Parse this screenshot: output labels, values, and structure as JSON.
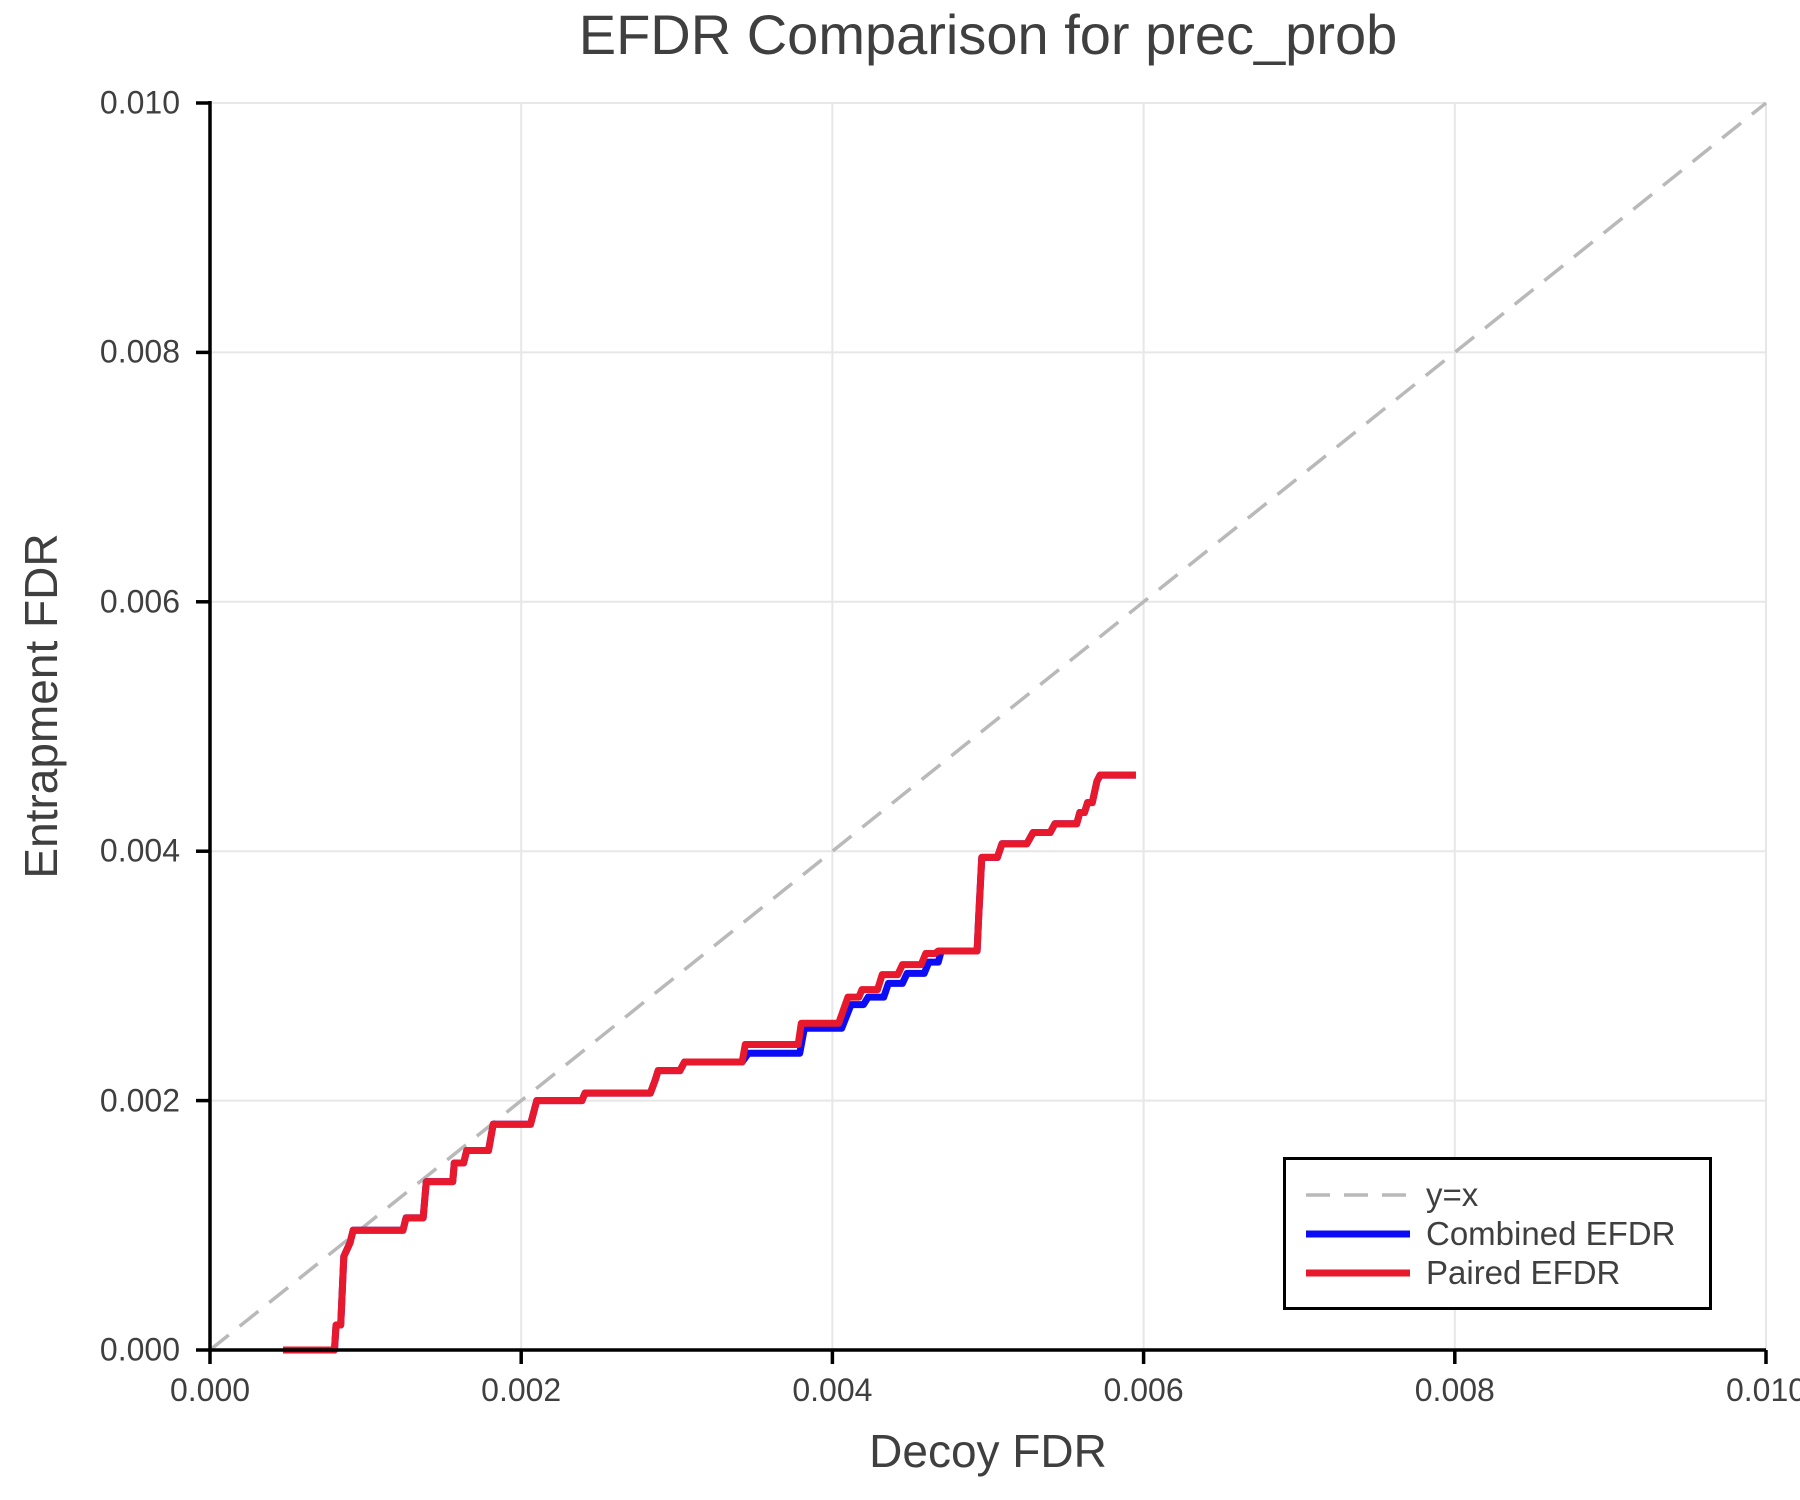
{
  "title": "EFDR Comparison for prec_prob",
  "axes": {
    "xlabel": "Decoy FDR",
    "ylabel": "Entrapment FDR",
    "x_tick_labels": [
      "0.000",
      "0.002",
      "0.004",
      "0.006",
      "0.008",
      "0.010"
    ],
    "y_tick_labels": [
      "0.000",
      "0.002",
      "0.004",
      "0.006",
      "0.008",
      "0.010"
    ]
  },
  "colors": {
    "identity_line": "#b9b9b9",
    "combined": "#0d0df5",
    "paired": "#e8192c",
    "grid": "#e7e7e7",
    "spine": "#000000",
    "text": "#3f3f3f"
  },
  "legend": {
    "items": [
      {
        "label": "y=x",
        "color": "#b9b9b9",
        "dashed": true
      },
      {
        "label": "Combined EFDR",
        "color": "#0d0df5",
        "dashed": false
      },
      {
        "label": "Paired EFDR",
        "color": "#e8192c",
        "dashed": false
      }
    ]
  },
  "chart_data": {
    "type": "line",
    "title": "EFDR Comparison for prec_prob",
    "xlabel": "Decoy FDR",
    "ylabel": "Entrapment FDR",
    "xlim": [
      0.0,
      0.01
    ],
    "ylim": [
      0.0,
      0.01
    ],
    "x_ticks": [
      0.0,
      0.002,
      0.004,
      0.006,
      0.008,
      0.01
    ],
    "y_ticks": [
      0.0,
      0.002,
      0.004,
      0.006,
      0.008,
      0.01
    ],
    "grid": true,
    "legend_position": "lower right",
    "series": [
      {
        "name": "y=x",
        "style": "dashed",
        "color": "#b9b9b9",
        "points": [
          [
            0.0,
            0.0
          ],
          [
            0.01,
            0.01
          ]
        ]
      },
      {
        "name": "Combined EFDR",
        "style": "solid",
        "color": "#0d0df5",
        "points": [
          [
            0.00047,
            0
          ],
          [
            0.0008,
            0
          ],
          [
            0.00081,
            0.0002
          ],
          [
            0.00084,
            0.0002
          ],
          [
            0.00086,
            0.00075
          ],
          [
            0.0009,
            0.00086
          ],
          [
            0.00092,
            0.00096
          ],
          [
            0.00124,
            0.00096
          ],
          [
            0.00126,
            0.00106
          ],
          [
            0.00137,
            0.00106
          ],
          [
            0.00139,
            0.00135
          ],
          [
            0.00156,
            0.00135
          ],
          [
            0.00157,
            0.0015
          ],
          [
            0.00163,
            0.0015
          ],
          [
            0.00165,
            0.0016
          ],
          [
            0.00179,
            0.0016
          ],
          [
            0.00182,
            0.00181
          ],
          [
            0.00206,
            0.00181
          ],
          [
            0.0021,
            0.002
          ],
          [
            0.00239,
            0.002
          ],
          [
            0.00241,
            0.00206
          ],
          [
            0.00283,
            0.00206
          ],
          [
            0.00286,
            0.00216
          ],
          [
            0.00288,
            0.00224
          ],
          [
            0.00302,
            0.00224
          ],
          [
            0.00305,
            0.00231
          ],
          [
            0.00342,
            0.00231
          ],
          [
            0.00346,
            0.00238
          ],
          [
            0.00379,
            0.00238
          ],
          [
            0.00382,
            0.00258
          ],
          [
            0.00406,
            0.00258
          ],
          [
            0.00412,
            0.00277
          ],
          [
            0.0042,
            0.00277
          ],
          [
            0.00423,
            0.00283
          ],
          [
            0.00433,
            0.00283
          ],
          [
            0.00436,
            0.00294
          ],
          [
            0.00445,
            0.00294
          ],
          [
            0.00448,
            0.00302
          ],
          [
            0.00459,
            0.00302
          ],
          [
            0.00462,
            0.00311
          ],
          [
            0.00468,
            0.00311
          ],
          [
            0.0047,
            0.0032
          ],
          [
            0.00493,
            0.0032
          ],
          [
            0.00494,
            0.00347
          ],
          [
            0.00496,
            0.00395
          ],
          [
            0.00506,
            0.00395
          ],
          [
            0.00509,
            0.00406
          ],
          [
            0.00525,
            0.00406
          ],
          [
            0.00529,
            0.00415
          ],
          [
            0.0054,
            0.00415
          ],
          [
            0.00543,
            0.00422
          ],
          [
            0.00557,
            0.00422
          ],
          [
            0.00559,
            0.00431
          ],
          [
            0.00562,
            0.00431
          ],
          [
            0.00564,
            0.00439
          ],
          [
            0.00567,
            0.00439
          ],
          [
            0.0057,
            0.00456
          ],
          [
            0.00572,
            0.00461
          ],
          [
            0.00595,
            0.00461
          ]
        ]
      },
      {
        "name": "Paired EFDR",
        "style": "solid",
        "color": "#e8192c",
        "points": [
          [
            0.00047,
            0
          ],
          [
            0.0008,
            0
          ],
          [
            0.00081,
            0.0002
          ],
          [
            0.00084,
            0.0002
          ],
          [
            0.00086,
            0.00075
          ],
          [
            0.0009,
            0.00086
          ],
          [
            0.00092,
            0.00096
          ],
          [
            0.00124,
            0.00096
          ],
          [
            0.00126,
            0.00106
          ],
          [
            0.00137,
            0.00106
          ],
          [
            0.00139,
            0.00135
          ],
          [
            0.00156,
            0.00135
          ],
          [
            0.00157,
            0.0015
          ],
          [
            0.00163,
            0.0015
          ],
          [
            0.00165,
            0.0016
          ],
          [
            0.00179,
            0.0016
          ],
          [
            0.00182,
            0.00181
          ],
          [
            0.00206,
            0.00181
          ],
          [
            0.0021,
            0.002
          ],
          [
            0.00239,
            0.002
          ],
          [
            0.00241,
            0.00206
          ],
          [
            0.00283,
            0.00206
          ],
          [
            0.00286,
            0.00216
          ],
          [
            0.00288,
            0.00224
          ],
          [
            0.00302,
            0.00224
          ],
          [
            0.00305,
            0.00231
          ],
          [
            0.00342,
            0.00231
          ],
          [
            0.00344,
            0.00245
          ],
          [
            0.00378,
            0.00245
          ],
          [
            0.0038,
            0.00262
          ],
          [
            0.00404,
            0.00262
          ],
          [
            0.0041,
            0.00283
          ],
          [
            0.00417,
            0.00283
          ],
          [
            0.00419,
            0.00289
          ],
          [
            0.00429,
            0.00289
          ],
          [
            0.00432,
            0.00301
          ],
          [
            0.00442,
            0.00301
          ],
          [
            0.00445,
            0.00309
          ],
          [
            0.00457,
            0.00309
          ],
          [
            0.0046,
            0.00318
          ],
          [
            0.00466,
            0.00318
          ],
          [
            0.00468,
            0.0032
          ],
          [
            0.00493,
            0.0032
          ],
          [
            0.00494,
            0.00347
          ],
          [
            0.00496,
            0.00395
          ],
          [
            0.00506,
            0.00395
          ],
          [
            0.00509,
            0.00406
          ],
          [
            0.00525,
            0.00406
          ],
          [
            0.00529,
            0.00415
          ],
          [
            0.0054,
            0.00415
          ],
          [
            0.00543,
            0.00422
          ],
          [
            0.00557,
            0.00422
          ],
          [
            0.00559,
            0.00431
          ],
          [
            0.00562,
            0.00431
          ],
          [
            0.00564,
            0.00439
          ],
          [
            0.00567,
            0.00439
          ],
          [
            0.0057,
            0.00456
          ],
          [
            0.00572,
            0.00461
          ],
          [
            0.00595,
            0.00461
          ]
        ]
      }
    ]
  }
}
